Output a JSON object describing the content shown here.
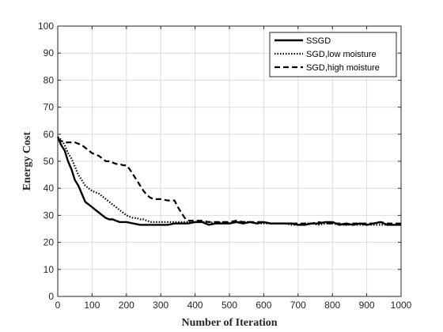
{
  "chart_data": {
    "type": "line",
    "xlabel": "Number of Iteration",
    "ylabel": "Energy Cost",
    "xlim": [
      0,
      1000
    ],
    "ylim": [
      0,
      100
    ],
    "xticks": [
      0,
      100,
      200,
      300,
      400,
      500,
      600,
      700,
      800,
      900,
      1000
    ],
    "yticks": [
      0,
      10,
      20,
      30,
      40,
      50,
      60,
      70,
      80,
      90,
      100
    ],
    "grid": true,
    "legend_position": "top-right",
    "series": [
      {
        "name": "SSGD",
        "style": "solid",
        "color": "#000000",
        "x": [
          0,
          10,
          20,
          30,
          40,
          50,
          60,
          70,
          80,
          90,
          100,
          110,
          120,
          130,
          140,
          150,
          160,
          170,
          180,
          190,
          200,
          220,
          240,
          260,
          280,
          300,
          320,
          340,
          360,
          380,
          400,
          420,
          440,
          460,
          480,
          500,
          520,
          540,
          560,
          580,
          600,
          620,
          640,
          660,
          680,
          700,
          720,
          740,
          760,
          780,
          800,
          820,
          840,
          860,
          880,
          900,
          920,
          940,
          960,
          980,
          1000
        ],
        "y": [
          59,
          56,
          54,
          50,
          47,
          43,
          41,
          38,
          35,
          34,
          33,
          32,
          31,
          30,
          29,
          28.5,
          28.5,
          28,
          27.5,
          27.5,
          27.5,
          27,
          26.5,
          26.5,
          26.5,
          26.5,
          26.5,
          27,
          27,
          27,
          27.5,
          27.5,
          26.5,
          27,
          27,
          27,
          27.5,
          27,
          27.5,
          27,
          27.5,
          27,
          27,
          27,
          27,
          26.5,
          26.5,
          27,
          27,
          27.5,
          27.5,
          26.5,
          27,
          26.5,
          27,
          26.5,
          27,
          27.5,
          26.5,
          26.5,
          26.5
        ]
      },
      {
        "name": "SGD,low moisture",
        "style": "dotted",
        "color": "#000000",
        "x": [
          0,
          10,
          20,
          30,
          40,
          50,
          60,
          70,
          80,
          90,
          100,
          110,
          120,
          130,
          140,
          150,
          160,
          170,
          180,
          190,
          200,
          210,
          220,
          230,
          240,
          250,
          260,
          270,
          280,
          300,
          320,
          340,
          360,
          380,
          400,
          420,
          440,
          460,
          480,
          500,
          520,
          540,
          560,
          580,
          600,
          620,
          640,
          660,
          680,
          700,
          720,
          740,
          760,
          780,
          800,
          820,
          840,
          860,
          880,
          900,
          920,
          940,
          960,
          980,
          1000
        ],
        "y": [
          59,
          58,
          56,
          53,
          51,
          48,
          45,
          43,
          41,
          40,
          39,
          38.5,
          38,
          37,
          36,
          35,
          34,
          33,
          32,
          31,
          30,
          29.5,
          29,
          29,
          28.5,
          28.5,
          28,
          27.5,
          27.5,
          27.5,
          27.5,
          27.5,
          27.5,
          27.5,
          27.5,
          27.5,
          27.5,
          27,
          27.5,
          27,
          27.5,
          27.5,
          27.5,
          27,
          27,
          27,
          27,
          27,
          26.5,
          26.5,
          27,
          27,
          26.5,
          27,
          27,
          26.5,
          26.5,
          26.5,
          26.5,
          26.5,
          26.5,
          26.5,
          26.5,
          26.5,
          26.5
        ]
      },
      {
        "name": "SGD,high moisture",
        "style": "dashed",
        "color": "#000000",
        "x": [
          0,
          10,
          20,
          30,
          40,
          50,
          60,
          70,
          80,
          90,
          100,
          110,
          120,
          130,
          140,
          150,
          160,
          170,
          180,
          190,
          200,
          210,
          220,
          230,
          240,
          250,
          260,
          270,
          280,
          290,
          300,
          320,
          340,
          350,
          360,
          370,
          380,
          400,
          420,
          440,
          460,
          480,
          500,
          520,
          540,
          560,
          580,
          600,
          620,
          640,
          660,
          680,
          700,
          720,
          740,
          760,
          780,
          800,
          820,
          840,
          860,
          880,
          900,
          920,
          940,
          960,
          980,
          1000
        ],
        "y": [
          58,
          57.5,
          57,
          57,
          57,
          57,
          56.5,
          56,
          55,
          54,
          53,
          52.5,
          52,
          51,
          50,
          50,
          49.5,
          49,
          49,
          48.5,
          48.5,
          47,
          45,
          43,
          41,
          39,
          37.5,
          36.5,
          36,
          36,
          36,
          35.5,
          35.5,
          33,
          31,
          29,
          28,
          28,
          28,
          27.5,
          27.5,
          27.5,
          27.5,
          28,
          27.5,
          27.5,
          27.5,
          27.5,
          27,
          27,
          27,
          27,
          27,
          27,
          27,
          27.5,
          27,
          27,
          27,
          26.5,
          27,
          27,
          27,
          27,
          27.5,
          27,
          27,
          27
        ]
      }
    ]
  }
}
